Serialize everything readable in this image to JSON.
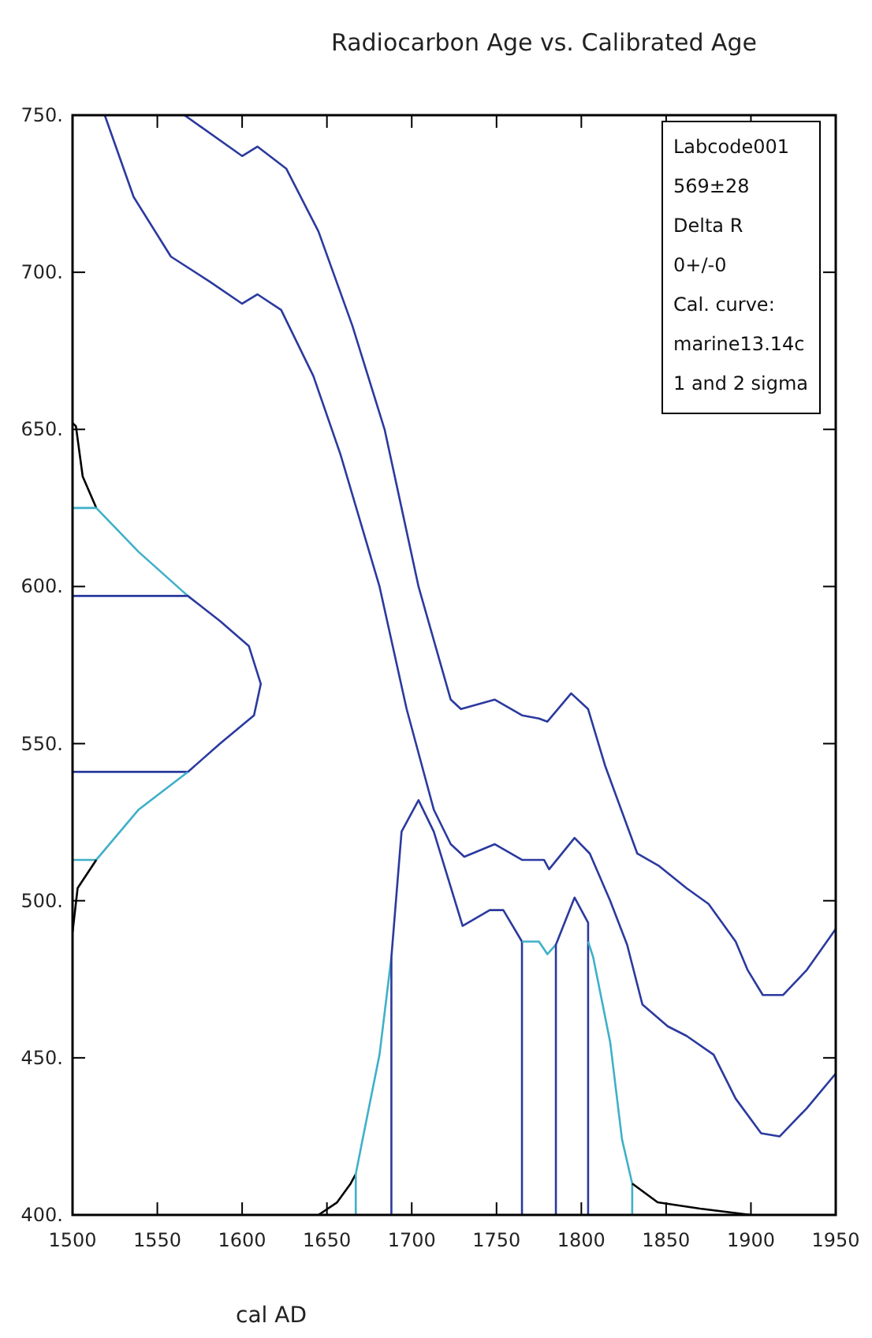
{
  "chart_data": {
    "type": "line",
    "title": "Radiocarbon Age vs. Calibrated Age",
    "xlabel": "cal AD",
    "xlim": [
      1500,
      1950
    ],
    "ylim": [
      400,
      750
    ],
    "xticks": [
      1500,
      1550,
      1600,
      1650,
      1700,
      1750,
      1800,
      1850,
      1900,
      1950
    ],
    "yticks": [
      {
        "value": 400,
        "label": "400."
      },
      {
        "value": 450,
        "label": "450."
      },
      {
        "value": 500,
        "label": "500."
      },
      {
        "value": 550,
        "label": "550."
      },
      {
        "value": 600,
        "label": "600."
      },
      {
        "value": 650,
        "label": "650."
      },
      {
        "value": 700,
        "label": "700."
      },
      {
        "value": 750,
        "label": "750."
      }
    ],
    "annotations": [
      "Labcode001",
      "569±28",
      "Delta R",
      "0+/-0",
      "Cal. curve:",
      "marine13.14c",
      "1 and 2 sigma"
    ],
    "series": [
      {
        "color": "#2b3a9e",
        "x": [
          1566,
          1600,
          1609,
          1626,
          1645,
          1665,
          1684,
          1704,
          1723,
          1729,
          1749,
          1765,
          1775,
          1780,
          1794,
          1804,
          1814,
          1833,
          1846,
          1862,
          1875,
          1891,
          1898,
          1907,
          1919,
          1933,
          1950
        ],
        "values": [
          750,
          737,
          740,
          733,
          713,
          683,
          650,
          600,
          564,
          561,
          564,
          559,
          558,
          557,
          566,
          561,
          543,
          515,
          511,
          504,
          499,
          487,
          478,
          470,
          470,
          478,
          491
        ]
      },
      {
        "color": "#2b3a9e",
        "x": [
          1519,
          1536,
          1558,
          1581,
          1600,
          1609,
          1623,
          1642,
          1658,
          1681,
          1697,
          1713,
          1723,
          1731,
          1749,
          1765,
          1778,
          1781,
          1796,
          1805,
          1817,
          1827,
          1836,
          1851,
          1862,
          1878,
          1891,
          1906,
          1917,
          1933,
          1950
        ],
        "values": [
          750,
          724,
          705,
          697,
          690,
          693,
          688,
          667,
          642,
          600,
          561,
          529,
          518,
          514,
          518,
          513,
          513,
          510,
          520,
          515,
          500,
          486,
          467,
          460,
          457,
          451,
          437,
          426,
          425,
          434,
          445
        ]
      },
      {
        "color": "#000000",
        "x": [
          1500,
          1502,
          1506,
          1514
        ],
        "values": [
          652,
          651,
          635,
          625
        ]
      },
      {
        "color": "#3fb0c8",
        "x": [
          1500,
          1514,
          1539,
          1568
        ],
        "values": [
          625,
          625,
          611,
          597
        ]
      },
      {
        "color": "#2b3a9e",
        "x": [
          1500,
          1568,
          1587,
          1604,
          1611,
          1607,
          1587,
          1568,
          1500
        ],
        "values": [
          597,
          597,
          589,
          581,
          569,
          559,
          550,
          541,
          541
        ]
      },
      {
        "color": "#3fb0c8",
        "x": [
          1568,
          1539,
          1514,
          1500
        ],
        "values": [
          541,
          529,
          513,
          513
        ]
      },
      {
        "color": "#000000",
        "x": [
          1514,
          1503,
          1500
        ],
        "values": [
          513,
          504,
          490
        ]
      },
      {
        "color": "#000000",
        "x": [
          1645,
          1656,
          1664,
          1667
        ],
        "values": [
          400,
          404,
          410,
          413
        ]
      },
      {
        "color": "#3fb0c8",
        "x": [
          1667,
          1667,
          1671,
          1681,
          1688
        ],
        "values": [
          400,
          413,
          424,
          451,
          482
        ]
      },
      {
        "color": "#2b3a9e",
        "x": [
          1688,
          1688,
          1694,
          1704,
          1713,
          1730,
          1746,
          1754,
          1765,
          1765
        ],
        "values": [
          400,
          482,
          522,
          532,
          522,
          492,
          497,
          497,
          487,
          400
        ]
      },
      {
        "color": "#3fb0c8",
        "x": [
          1765,
          1775,
          1780,
          1785
        ],
        "values": [
          487,
          487,
          483,
          486
        ]
      },
      {
        "color": "#2b3a9e",
        "x": [
          1785,
          1785,
          1796,
          1804,
          1804
        ],
        "values": [
          400,
          486,
          501,
          493,
          400
        ]
      },
      {
        "color": "#3fb0c8",
        "x": [
          1804,
          1807,
          1817,
          1824,
          1830,
          1830
        ],
        "values": [
          487,
          482,
          455,
          424,
          410,
          400
        ]
      },
      {
        "color": "#000000",
        "x": [
          1830,
          1845,
          1870,
          1900
        ],
        "values": [
          410,
          404,
          402,
          400
        ]
      }
    ]
  }
}
